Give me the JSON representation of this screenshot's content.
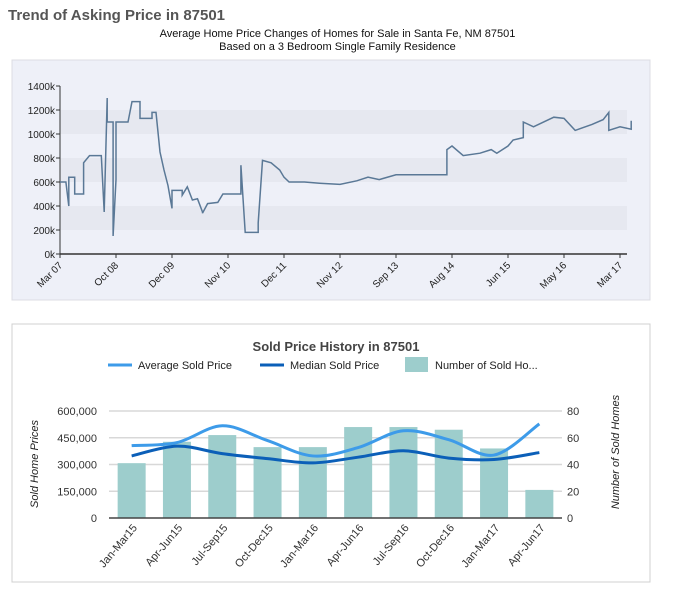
{
  "chart_data": [
    {
      "type": "line",
      "title": "Trend of Asking Price in 87501",
      "subtitle": [
        "Average Home Price Changes of Homes for Sale in Santa Fe, NM 87501",
        "Based on a 3 Bedroom Single Family Residence"
      ],
      "ylim": [
        0,
        1400
      ],
      "y_ticks": [
        "0k",
        "200k",
        "400k",
        "600k",
        "800k",
        "1000k",
        "1200k",
        "1400k"
      ],
      "x_ticks": [
        [
          "Mar 07",
          "2007-03"
        ],
        [
          "Oct 08",
          "2008-10"
        ],
        [
          "Dec 09",
          "2009-12"
        ],
        [
          "Nov 10",
          "2010-11"
        ],
        [
          "Dec 11",
          "2011-12"
        ],
        [
          "Nov 12",
          "2012-11"
        ],
        [
          "Sep 13",
          "2013-09"
        ],
        [
          "Aug 14",
          "2014-08"
        ],
        [
          "Jun 15",
          "2015-06"
        ],
        [
          "May 16",
          "2016-05"
        ],
        [
          "Mar 17",
          "2017-03"
        ]
      ],
      "line_color": "#5a7896",
      "points": [
        [
          "2007-03",
          600
        ],
        [
          "2007-05",
          600
        ],
        [
          "2007-06",
          400
        ],
        [
          "2007-06",
          640
        ],
        [
          "2007-08",
          640
        ],
        [
          "2007-08",
          500
        ],
        [
          "2007-11",
          500
        ],
        [
          "2007-11",
          760
        ],
        [
          "2008-01",
          820
        ],
        [
          "2008-05",
          820
        ],
        [
          "2008-06",
          350
        ],
        [
          "2008-07",
          1300
        ],
        [
          "2008-07",
          1100
        ],
        [
          "2008-09",
          1100
        ],
        [
          "2008-09",
          150
        ],
        [
          "2008-10",
          620
        ],
        [
          "2008-10",
          1100
        ],
        [
          "2009-01",
          1100
        ],
        [
          "2009-02",
          1270
        ],
        [
          "2009-04",
          1270
        ],
        [
          "2009-04",
          1130
        ],
        [
          "2009-07",
          1130
        ],
        [
          "2009-07",
          1180
        ],
        [
          "2009-08",
          1180
        ],
        [
          "2009-09",
          850
        ],
        [
          "2009-10",
          700
        ],
        [
          "2009-11",
          570
        ],
        [
          "2009-12",
          380
        ],
        [
          "2009-12",
          530
        ],
        [
          "2010-02",
          530
        ],
        [
          "2010-02",
          490
        ],
        [
          "2010-03",
          560
        ],
        [
          "2010-04",
          450
        ],
        [
          "2010-05",
          460
        ],
        [
          "2010-06",
          350
        ],
        [
          "2010-06",
          340
        ],
        [
          "2010-07",
          420
        ],
        [
          "2010-09",
          430
        ],
        [
          "2010-10",
          500
        ],
        [
          "2010-11",
          500
        ],
        [
          "2011-02",
          500
        ],
        [
          "2011-02",
          740
        ],
        [
          "2011-03",
          180
        ],
        [
          "2011-06",
          180
        ],
        [
          "2011-06",
          260
        ],
        [
          "2011-07",
          780
        ],
        [
          "2011-09",
          760
        ],
        [
          "2011-11",
          700
        ],
        [
          "2011-12",
          640
        ],
        [
          "2012-01",
          600
        ],
        [
          "2012-04",
          600
        ],
        [
          "2012-07",
          590
        ],
        [
          "2012-11",
          580
        ],
        [
          "2013-02",
          610
        ],
        [
          "2013-04",
          640
        ],
        [
          "2013-06",
          620
        ],
        [
          "2013-09",
          660
        ],
        [
          "2014-07",
          660
        ],
        [
          "2014-07",
          870
        ],
        [
          "2014-08",
          900
        ],
        [
          "2014-10",
          820
        ],
        [
          "2015-01",
          840
        ],
        [
          "2015-03",
          870
        ],
        [
          "2015-04",
          840
        ],
        [
          "2015-06",
          900
        ],
        [
          "2015-07",
          950
        ],
        [
          "2015-09",
          970
        ],
        [
          "2015-09",
          1100
        ],
        [
          "2015-11",
          1060
        ],
        [
          "2016-03",
          1140
        ],
        [
          "2016-05",
          1130
        ],
        [
          "2016-07",
          1030
        ],
        [
          "2016-10",
          1080
        ],
        [
          "2016-12",
          1120
        ],
        [
          "2017-01",
          1180
        ],
        [
          "2017-01",
          1030
        ],
        [
          "2017-03",
          1060
        ],
        [
          "2017-05",
          1040
        ],
        [
          "2017-05",
          1110
        ]
      ]
    },
    {
      "type": "bar+line",
      "title": "Sold Price History in 87501",
      "categories": [
        "Jan-Mar15",
        "Apr-Jun15",
        "Jul-Sep15",
        "Oct-Dec15",
        "Jan-Mar16",
        "Apr-Jun16",
        "Jul-Sep16",
        "Oct-Dec16",
        "Jan-Mar17",
        "Apr-Jun17"
      ],
      "ylabel": "Sold Home Prices",
      "y2label": "Number of Sold Homes",
      "ylim": [
        0,
        600000
      ],
      "y2lim": [
        0,
        80
      ],
      "y_ticks": [
        "0",
        "150,000",
        "300,000",
        "450,000",
        "600,000"
      ],
      "y2_ticks": [
        "0",
        "20",
        "40",
        "60",
        "80"
      ],
      "legend": "top",
      "series": [
        {
          "name": "Average Sold Price",
          "type": "line",
          "axis": "left",
          "color": "#3d9be9",
          "values": [
            406000,
            423000,
            517000,
            434000,
            348000,
            395000,
            489000,
            439000,
            353000,
            528000
          ]
        },
        {
          "name": "Median Sold Price",
          "type": "line",
          "axis": "left",
          "color": "#0b5fb8",
          "values": [
            348000,
            403000,
            361000,
            333000,
            309000,
            341000,
            377000,
            336000,
            328000,
            367000
          ]
        },
        {
          "name": "Number of Sold Ho...",
          "type": "bar",
          "axis": "right",
          "color": "#9dcdcc",
          "values": [
            41,
            57,
            62,
            53,
            53,
            68,
            68,
            66,
            52,
            21
          ]
        }
      ]
    }
  ]
}
